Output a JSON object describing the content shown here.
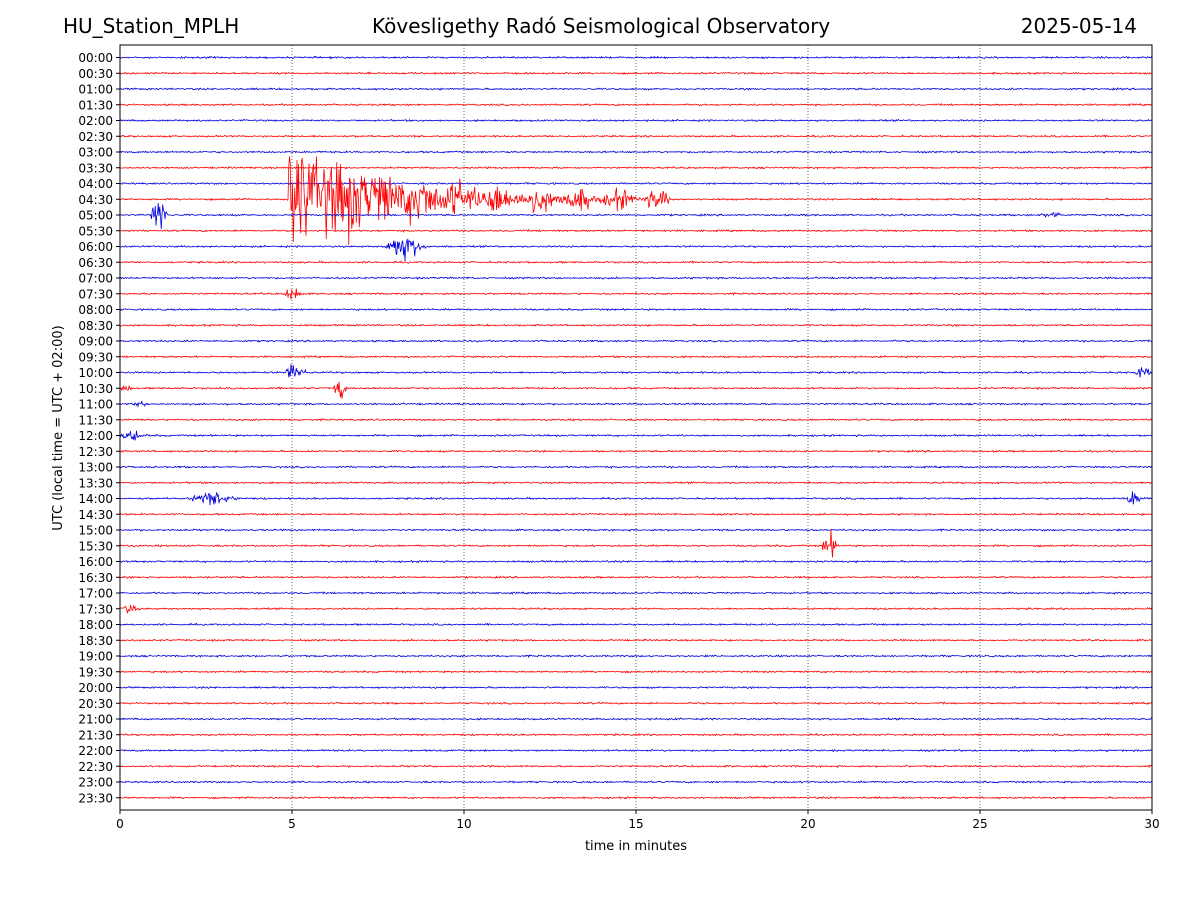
{
  "header": {
    "station": "HU_Station_MPLH",
    "observatory": "Kövesligethy Radó Seismological Observatory",
    "date": "2025-05-14"
  },
  "colors": {
    "trace_a": "#0000dd",
    "trace_b": "#ff0000",
    "grid": "#000000"
  },
  "chart_data": {
    "type": "line",
    "xlabel": "time in minutes",
    "ylabel": "UTC (local time = UTC + 02:00)",
    "xlim": [
      0,
      30
    ],
    "xticks": [
      "0",
      "5",
      "10",
      "15",
      "20",
      "25",
      "30"
    ],
    "grid": "vertical dotted at 5-minute intervals",
    "rows": [
      "00:00",
      "00:30",
      "01:00",
      "01:30",
      "02:00",
      "02:30",
      "03:00",
      "03:30",
      "04:00",
      "04:30",
      "05:00",
      "05:30",
      "06:00",
      "06:30",
      "07:00",
      "07:30",
      "08:00",
      "08:30",
      "09:00",
      "09:30",
      "10:00",
      "10:30",
      "11:00",
      "11:30",
      "12:00",
      "12:30",
      "13:00",
      "13:30",
      "14:00",
      "14:30",
      "15:00",
      "15:30",
      "16:00",
      "16:30",
      "17:00",
      "17:30",
      "18:00",
      "18:30",
      "19:00",
      "19:30",
      "20:00",
      "20:30",
      "21:00",
      "21:30",
      "22:00",
      "22:30",
      "23:00",
      "23:30"
    ],
    "row_colors": "alternating blue (on the hour) and red (half hour)",
    "events": [
      {
        "row": "04:30",
        "start_min": 4.9,
        "end_min": 16.0,
        "amplitude": 5.0
      },
      {
        "row": "04:30",
        "start_min": 6.1,
        "end_min": 7.5,
        "amplitude": 3.5
      },
      {
        "row": "05:00",
        "start_min": 0.9,
        "end_min": 1.4,
        "amplitude": 1.8
      },
      {
        "row": "05:00",
        "start_min": 26.7,
        "end_min": 27.6,
        "amplitude": 0.3
      },
      {
        "row": "06:00",
        "start_min": 7.7,
        "end_min": 8.9,
        "amplitude": 1.2
      },
      {
        "row": "07:30",
        "start_min": 4.8,
        "end_min": 5.3,
        "amplitude": 0.9
      },
      {
        "row": "10:00",
        "start_min": 4.8,
        "end_min": 5.4,
        "amplitude": 1.0
      },
      {
        "row": "10:00",
        "start_min": 29.5,
        "end_min": 30.0,
        "amplitude": 0.6
      },
      {
        "row": "10:30",
        "start_min": 6.2,
        "end_min": 6.6,
        "amplitude": 1.1
      },
      {
        "row": "10:30",
        "start_min": 0.0,
        "end_min": 0.4,
        "amplitude": 0.4
      },
      {
        "row": "11:00",
        "start_min": 0.4,
        "end_min": 0.8,
        "amplitude": 0.4
      },
      {
        "row": "12:00",
        "start_min": 0.0,
        "end_min": 0.8,
        "amplitude": 0.5
      },
      {
        "row": "14:00",
        "start_min": 2.0,
        "end_min": 3.5,
        "amplitude": 0.6
      },
      {
        "row": "14:00",
        "start_min": 29.2,
        "end_min": 29.8,
        "amplitude": 0.7
      },
      {
        "row": "15:30",
        "start_min": 20.4,
        "end_min": 20.9,
        "amplitude": 1.2
      },
      {
        "row": "17:30",
        "start_min": 0.0,
        "end_min": 0.6,
        "amplitude": 0.4
      }
    ]
  }
}
